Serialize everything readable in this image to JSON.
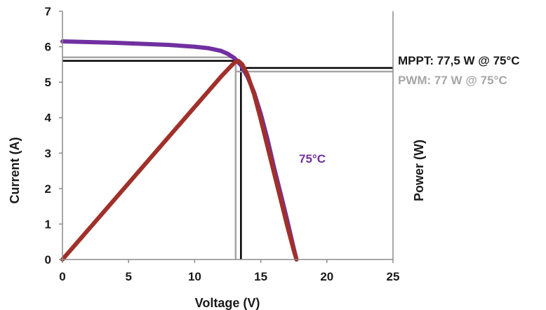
{
  "chart_data": {
    "type": "line",
    "title": "",
    "xlabel": "Voltage (V)",
    "ylabel": "Current (A)",
    "y2label": "Power (W)",
    "xlim": [
      0,
      25
    ],
    "ylim": [
      0,
      7
    ],
    "xticks": [
      "0",
      "5",
      "10",
      "15",
      "20",
      "25"
    ],
    "yticks": [
      "0",
      "1",
      "2",
      "3",
      "4",
      "5",
      "6",
      "7"
    ],
    "grid": false,
    "legend": "none",
    "series": [
      {
        "label": "75°C",
        "color": "#7030a0",
        "x": [
          0,
          2,
          4,
          6,
          8,
          10,
          11,
          12,
          12.5,
          13,
          13.5,
          14,
          14.5,
          15,
          15.5,
          16,
          16.5,
          17,
          17.5,
          17.7
        ],
        "y": [
          6.15,
          6.13,
          6.11,
          6.08,
          6.05,
          6.0,
          5.96,
          5.88,
          5.8,
          5.68,
          5.48,
          5.15,
          4.7,
          4.1,
          3.4,
          2.6,
          1.85,
          1.1,
          0.3,
          0
        ]
      },
      {
        "color": "#a0302a",
        "x": [
          0,
          2,
          4,
          6,
          8,
          10,
          12,
          13,
          13.3,
          13.6,
          14,
          14.5,
          15,
          15.5,
          16,
          16.5,
          17,
          17.5,
          17.7
        ],
        "y": [
          0,
          0.86,
          1.72,
          2.58,
          3.44,
          4.3,
          5.16,
          5.55,
          5.6,
          5.5,
          5.2,
          4.65,
          3.95,
          3.2,
          2.45,
          1.7,
          0.95,
          0.25,
          0
        ]
      }
    ],
    "reference_lines": [
      {
        "name": "mppt-horizontal",
        "color": "#000000",
        "orientation": "horizontal",
        "axis": "left",
        "value": 5.6,
        "x_from": 0,
        "x_to": 13.5
      },
      {
        "name": "mppt-vertical",
        "color": "#000000",
        "orientation": "vertical",
        "value": 13.5,
        "y_from": 0,
        "y_to": 5.6
      },
      {
        "name": "mppt-power",
        "color": "#000000",
        "orientation": "horizontal",
        "axis": "left",
        "value": 5.4,
        "x_from": 13.5,
        "x_to": 25
      },
      {
        "name": "pwm-horizontal",
        "color": "#a6a6a6",
        "orientation": "horizontal",
        "axis": "left",
        "value": 5.7,
        "x_from": 0,
        "x_to": 13.1
      },
      {
        "name": "pwm-vertical",
        "color": "#a6a6a6",
        "orientation": "vertical",
        "value": 13.1,
        "y_from": 0,
        "y_to": 5.7
      },
      {
        "name": "pwm-power",
        "color": "#a6a6a6",
        "orientation": "horizontal",
        "axis": "left",
        "value": 5.3,
        "x_from": 13.1,
        "x_to": 25
      }
    ],
    "annotations": {
      "mppt": {
        "text": "MPPT: 77,5 W @ 75°C",
        "color": "#1a1a1a"
      },
      "pwm": {
        "text": "PWM: 77 W @ 75°C",
        "color": "#a6a6a6"
      },
      "temp": {
        "text": "75°C",
        "color": "#7030a0"
      }
    }
  }
}
